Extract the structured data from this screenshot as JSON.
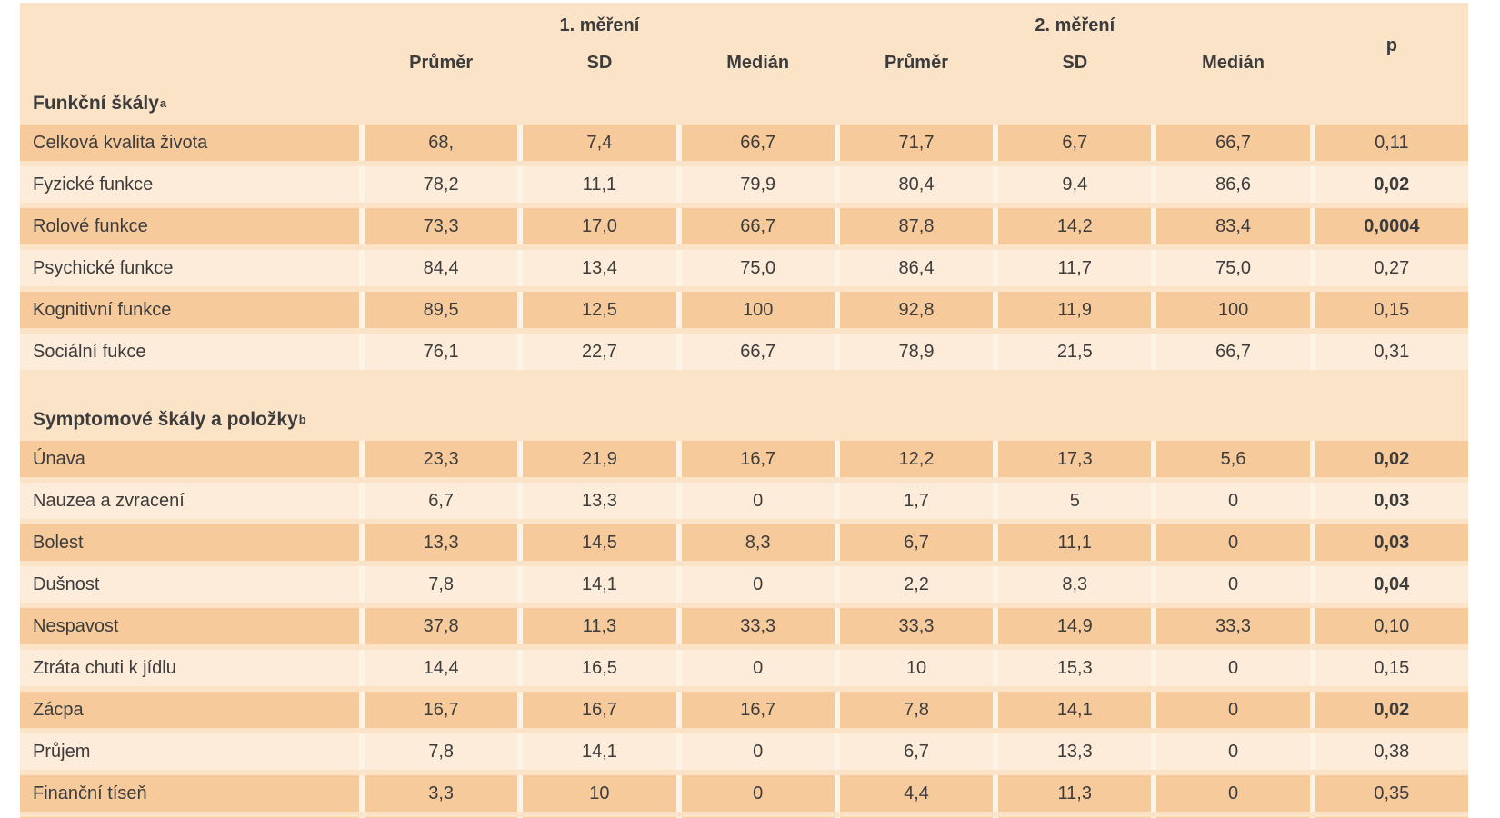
{
  "table": {
    "group_headers": {
      "m1": "1. měření",
      "m2": "2. měření",
      "p": "p"
    },
    "sub_headers": [
      "Průměr",
      "SD",
      "Medián",
      "Průměr",
      "SD",
      "Medián"
    ],
    "colors": {
      "table_background": "#fbe3c8",
      "row_dark": "#f7ca9c",
      "row_light": "#fdecd9",
      "text": "#3c3c3c"
    },
    "sections": [
      {
        "title": "Funkční škály",
        "superscript": "a",
        "rows": [
          {
            "label": "Celková kvalita života",
            "values": [
              "68,",
              "7,4",
              "66,7",
              "71,7",
              "6,7",
              "66,7"
            ],
            "p": "0,11",
            "p_bold": false,
            "shade": "dark"
          },
          {
            "label": "Fyzické funkce",
            "values": [
              "78,2",
              "11,1",
              "79,9",
              "80,4",
              "9,4",
              "86,6"
            ],
            "p": "0,02",
            "p_bold": true,
            "shade": "light"
          },
          {
            "label": "Rolové funkce",
            "values": [
              "73,3",
              "17,0",
              "66,7",
              "87,8",
              "14,2",
              "83,4"
            ],
            "p": "0,0004",
            "p_bold": true,
            "shade": "dark"
          },
          {
            "label": "Psychické funkce",
            "values": [
              "84,4",
              "13,4",
              "75,0",
              "86,4",
              "11,7",
              "75,0"
            ],
            "p": "0,27",
            "p_bold": false,
            "shade": "light"
          },
          {
            "label": "Kognitivní funkce",
            "values": [
              "89,5",
              "12,5",
              "100",
              "92,8",
              "11,9",
              "100"
            ],
            "p": "0,15",
            "p_bold": false,
            "shade": "dark"
          },
          {
            "label": "Sociální fukce",
            "values": [
              "76,1",
              "22,7",
              "66,7",
              "78,9",
              "21,5",
              "66,7"
            ],
            "p": "0,31",
            "p_bold": false,
            "shade": "light"
          }
        ]
      },
      {
        "title": "Symptomové škály a položky",
        "superscript": "b",
        "rows": [
          {
            "label": "Únava",
            "values": [
              "23,3",
              "21,9",
              "16,7",
              "12,2",
              "17,3",
              "5,6"
            ],
            "p": "0,02",
            "p_bold": true,
            "shade": "dark"
          },
          {
            "label": "Nauzea a zvracení",
            "values": [
              "6,7",
              "13,3",
              "0",
              "1,7",
              "5",
              "0"
            ],
            "p": "0,03",
            "p_bold": true,
            "shade": "light"
          },
          {
            "label": "Bolest",
            "values": [
              "13,3",
              "14,5",
              "8,3",
              "6,7",
              "11,1",
              "0"
            ],
            "p": "0,03",
            "p_bold": true,
            "shade": "dark"
          },
          {
            "label": "Dušnost",
            "values": [
              "7,8",
              "14,1",
              "0",
              "2,2",
              "8,3",
              "0"
            ],
            "p": "0,04",
            "p_bold": true,
            "shade": "light"
          },
          {
            "label": "Nespavost",
            "values": [
              "37,8",
              "11,3",
              "33,3",
              "33,3",
              "14,9",
              "33,3"
            ],
            "p": "0,10",
            "p_bold": false,
            "shade": "dark"
          },
          {
            "label": "Ztráta chuti k jídlu",
            "values": [
              "14,4",
              "16,5",
              "0",
              "10",
              "15,3",
              "0"
            ],
            "p": "0,15",
            "p_bold": false,
            "shade": "light"
          },
          {
            "label": "Zácpa",
            "values": [
              "16,7",
              "16,7",
              "16,7",
              "7,8",
              "14,1",
              "0"
            ],
            "p": "0,02",
            "p_bold": true,
            "shade": "dark"
          },
          {
            "label": "Průjem",
            "values": [
              "7,8",
              "14,1",
              "0",
              "6,7",
              "13,3",
              "0"
            ],
            "p": "0,38",
            "p_bold": false,
            "shade": "light"
          },
          {
            "label": "Finanční tíseň",
            "values": [
              "3,3",
              "10",
              "0",
              "4,4",
              "11,3",
              "0"
            ],
            "p": "0,35",
            "p_bold": false,
            "shade": "dark"
          }
        ]
      }
    ]
  }
}
